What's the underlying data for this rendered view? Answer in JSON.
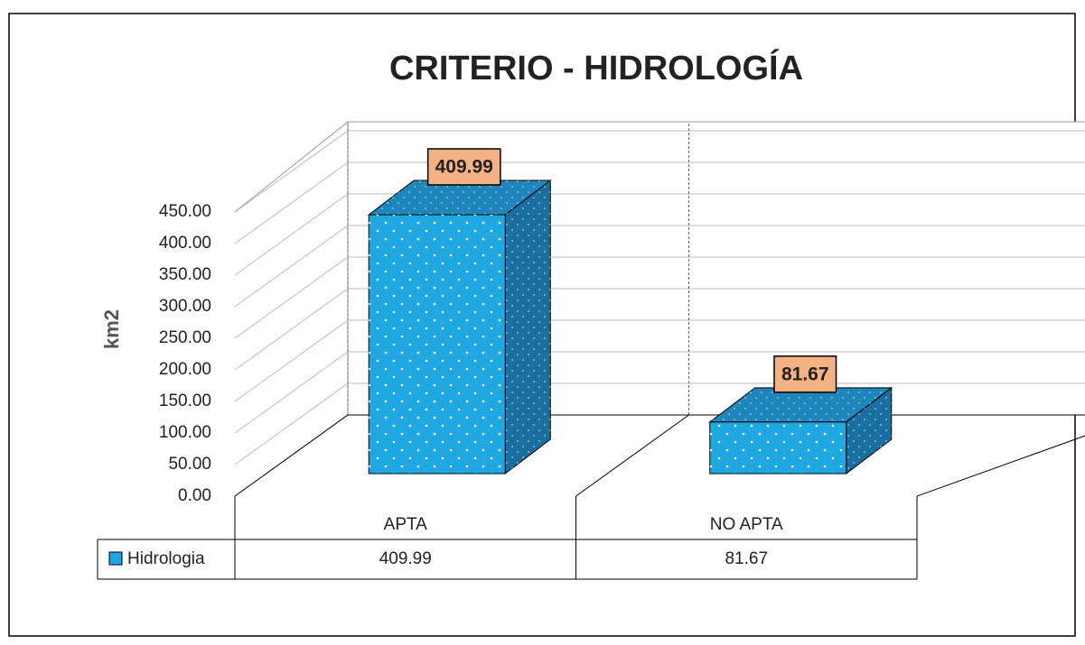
{
  "chart_data": {
    "type": "bar3d",
    "title": "CRITERIO - HIDROLOGÍA",
    "y_label": "km2",
    "categories": [
      "APTA",
      "NO APTA"
    ],
    "series": [
      {
        "name": "Hidrologia",
        "color": "#1ea7e1",
        "values": [
          409.99,
          81.67
        ]
      }
    ],
    "ylim": [
      0,
      450
    ],
    "yticks": [
      {
        "value": 0,
        "label": "0.00"
      },
      {
        "value": 50,
        "label": "50.00"
      },
      {
        "value": 100,
        "label": "100.00"
      },
      {
        "value": 150,
        "label": "150.00"
      },
      {
        "value": 200,
        "label": "200.00"
      },
      {
        "value": 250,
        "label": "250.00"
      },
      {
        "value": 300,
        "label": "300.00"
      },
      {
        "value": 350,
        "label": "350.00"
      },
      {
        "value": 400,
        "label": "400.00"
      },
      {
        "value": 450,
        "label": "450.00"
      }
    ],
    "grid": true,
    "data_table": true
  }
}
